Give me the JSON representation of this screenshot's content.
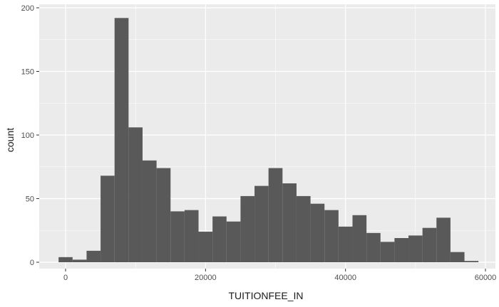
{
  "chart_data": {
    "type": "bar",
    "subtype": "histogram",
    "xlabel": "TUITIONFEE_IN",
    "ylabel": "count",
    "xlim": [
      -2000,
      60000
    ],
    "ylim": [
      0,
      200
    ],
    "x_ticks": [
      {
        "value": 0,
        "label": "0"
      },
      {
        "value": 20000,
        "label": "20000"
      },
      {
        "value": 40000,
        "label": "40000"
      },
      {
        "value": 60000,
        "label": "60000"
      }
    ],
    "y_ticks": [
      {
        "value": 0,
        "label": "0"
      },
      {
        "value": 50,
        "label": "50"
      },
      {
        "value": 100,
        "label": "100"
      },
      {
        "value": 150,
        "label": "150"
      },
      {
        "value": 200,
        "label": "200"
      }
    ],
    "bin_width": 2000,
    "first_bin_start": -1000,
    "counts": [
      4,
      2,
      9,
      68,
      192,
      106,
      80,
      74,
      40,
      41,
      24,
      36,
      32,
      52,
      60,
      74,
      62,
      52,
      46,
      41,
      28,
      37,
      23,
      16,
      19,
      21,
      27,
      35,
      8,
      1
    ],
    "bar_color": "#595959",
    "panel_background": "#ebebeb",
    "grid_color": "#ffffff",
    "grid": true,
    "legend": "none"
  }
}
